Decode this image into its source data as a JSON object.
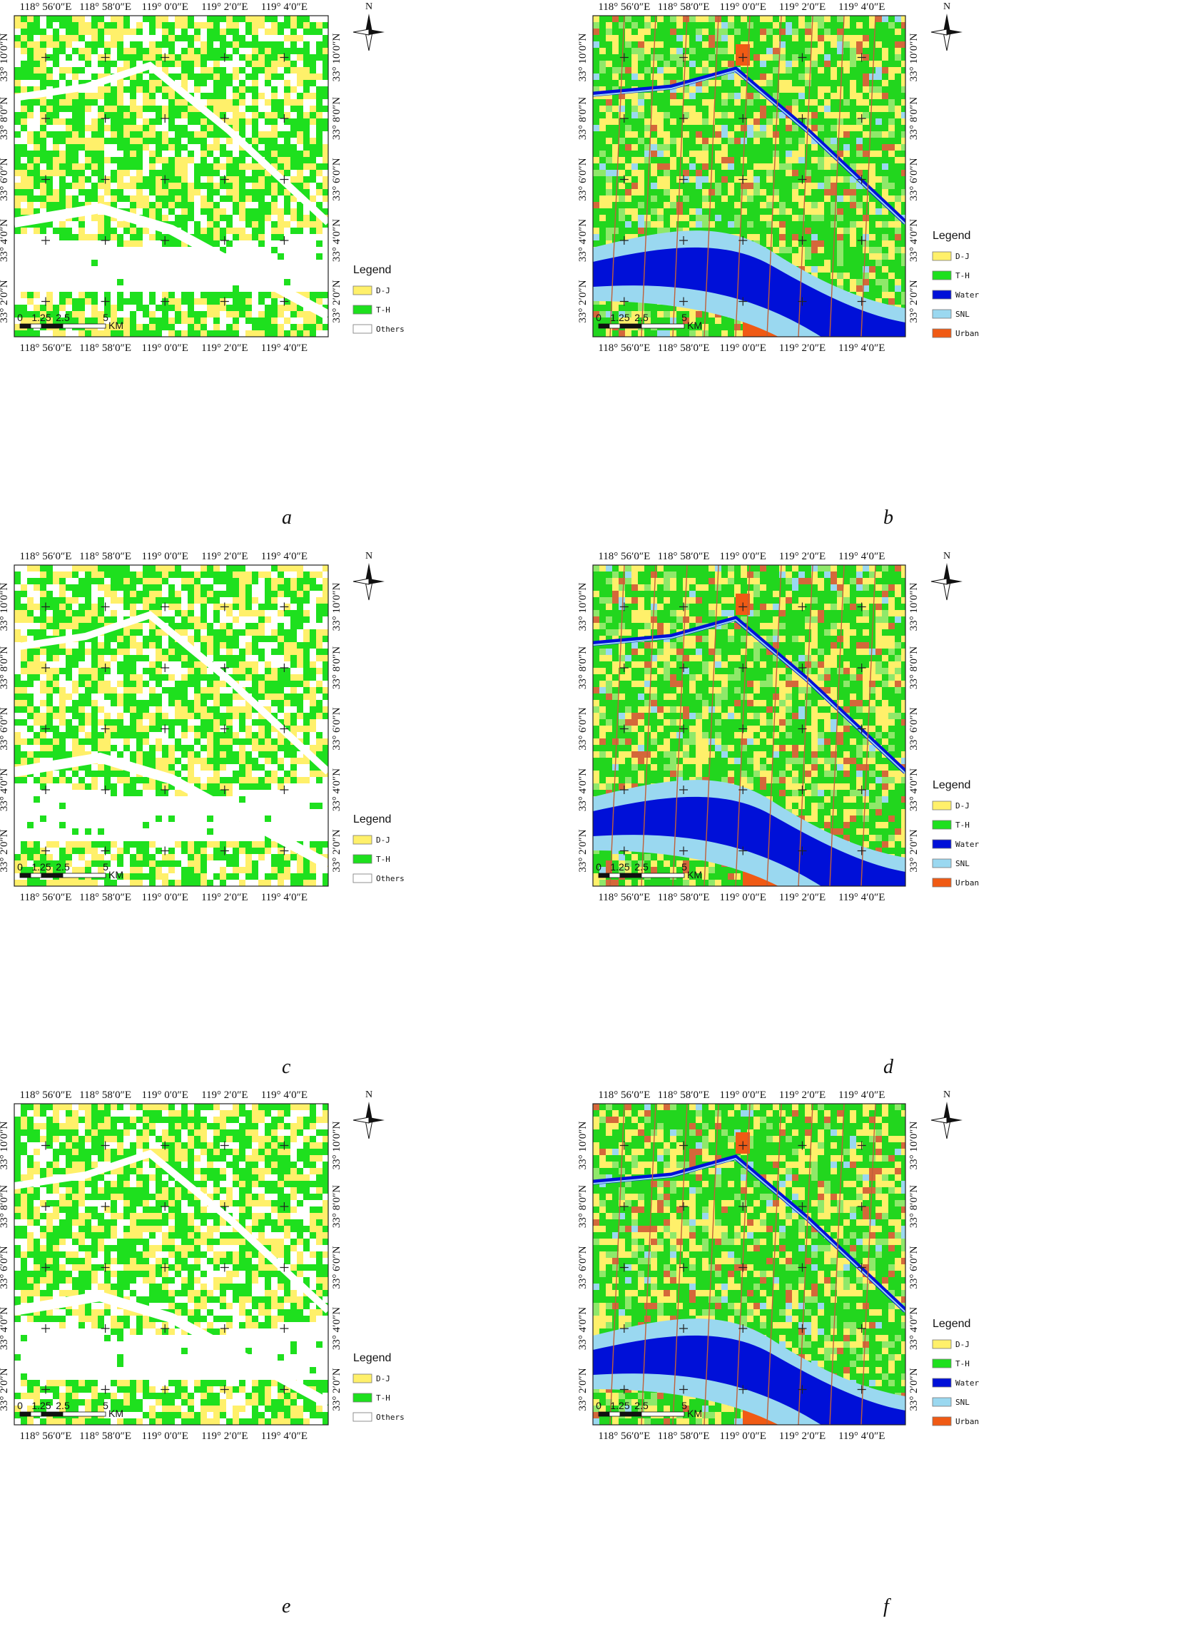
{
  "figure": {
    "panels": [
      {
        "id": "a",
        "caption": "a",
        "classes": "crop",
        "lon_labels": [
          "118° 56′0″E",
          "118° 58′0″E",
          "119° 0′0″E",
          "119° 2′0″E",
          "119° 4′0″E"
        ],
        "lat_labels": [
          "33° 10′0″N",
          "33° 8′0″N",
          "33° 6′0″N",
          "33° 4′0″N",
          "33° 2′0″N"
        ],
        "north_label": "N",
        "scale": {
          "ticks": [
            "0",
            "1.25",
            "2.5",
            "5"
          ],
          "unit": "KM"
        },
        "legend": {
          "title": "Legend",
          "items": [
            {
              "label": "D-J",
              "color": "#fff06a"
            },
            {
              "label": "T-H",
              "color": "#1ee01e"
            },
            {
              "label": "Others",
              "color": "#ffffff"
            }
          ]
        }
      },
      {
        "id": "b",
        "caption": "b",
        "classes": "full",
        "lon_labels": [
          "118° 56′0″E",
          "118° 58′0″E",
          "119° 0′0″E",
          "119° 2′0″E",
          "119° 4′0″E"
        ],
        "lat_labels": [
          "33° 10′0″N",
          "33° 8′0″N",
          "33° 6′0″N",
          "33° 4′0″N",
          "33° 2′0″N"
        ],
        "north_label": "N",
        "scale": {
          "ticks": [
            "0",
            "1.25",
            "2.5",
            "5"
          ],
          "unit": "KM"
        },
        "legend": {
          "title": "Legend",
          "items": [
            {
              "label": "D-J",
              "color": "#fff06a"
            },
            {
              "label": "T-H",
              "color": "#1ee01e"
            },
            {
              "label": "Water",
              "color": "#0010d8"
            },
            {
              "label": "SNL",
              "color": "#9ad8f0"
            },
            {
              "label": "Urban",
              "color": "#f05a14"
            }
          ]
        }
      },
      {
        "id": "c",
        "caption": "c",
        "classes": "crop",
        "lon_labels": [
          "118° 56′0″E",
          "118° 58′0″E",
          "119° 0′0″E",
          "119° 2′0″E",
          "119° 4′0″E"
        ],
        "lat_labels": [
          "33° 10′0″N",
          "33° 8′0″N",
          "33° 6′0″N",
          "33° 4′0″N",
          "33° 2′0″N"
        ],
        "north_label": "N",
        "scale": {
          "ticks": [
            "0",
            "1.25",
            "2.5",
            "5"
          ],
          "unit": "KM"
        },
        "legend": {
          "title": "Legend",
          "items": [
            {
              "label": "D-J",
              "color": "#fff06a"
            },
            {
              "label": "T-H",
              "color": "#1ee01e"
            },
            {
              "label": "Others",
              "color": "#ffffff"
            }
          ]
        }
      },
      {
        "id": "d",
        "caption": "d",
        "classes": "full",
        "lon_labels": [
          "118° 56′0″E",
          "118° 58′0″E",
          "119° 0′0″E",
          "119° 2′0″E",
          "119° 4′0″E"
        ],
        "lat_labels": [
          "33° 10′0″N",
          "33° 8′0″N",
          "33° 6′0″N",
          "33° 4′0″N",
          "33° 2′0″N"
        ],
        "north_label": "N",
        "scale": {
          "ticks": [
            "0",
            "1.25",
            "2.5",
            "5"
          ],
          "unit": "KM"
        },
        "legend": {
          "title": "Legend",
          "items": [
            {
              "label": "D-J",
              "color": "#fff06a"
            },
            {
              "label": "T-H",
              "color": "#1ee01e"
            },
            {
              "label": "Water",
              "color": "#0010d8"
            },
            {
              "label": "SNL",
              "color": "#9ad8f0"
            },
            {
              "label": "Urban",
              "color": "#f05a14"
            }
          ]
        }
      },
      {
        "id": "e",
        "caption": "e",
        "classes": "crop",
        "lon_labels": [
          "118° 56′0″E",
          "118° 58′0″E",
          "119° 0′0″E",
          "119° 2′0″E",
          "119° 4′0″E"
        ],
        "lat_labels": [
          "33° 10′0″N",
          "33° 8′0″N",
          "33° 6′0″N",
          "33° 4′0″N",
          "33° 2′0″N"
        ],
        "north_label": "N",
        "scale": {
          "ticks": [
            "0",
            "1.25",
            "2.5",
            "5"
          ],
          "unit": "KM"
        },
        "legend": {
          "title": "Legend",
          "items": [
            {
              "label": "D-J",
              "color": "#fff06a"
            },
            {
              "label": "T-H",
              "color": "#1ee01e"
            },
            {
              "label": "Others",
              "color": "#ffffff"
            }
          ]
        }
      },
      {
        "id": "f",
        "caption": "f",
        "classes": "full",
        "lon_labels": [
          "118° 56′0″E",
          "118° 58′0″E",
          "119° 0′0″E",
          "119° 2′0″E",
          "119° 4′0″E"
        ],
        "lat_labels": [
          "33° 10′0″N",
          "33° 8′0″N",
          "33° 6′0″N",
          "33° 4′0″N",
          "33° 2′0″N"
        ],
        "north_label": "N",
        "scale": {
          "ticks": [
            "0",
            "1.25",
            "2.5",
            "5"
          ],
          "unit": "KM"
        },
        "legend": {
          "title": "Legend",
          "items": [
            {
              "label": "D-J",
              "color": "#fff06a"
            },
            {
              "label": "T-H",
              "color": "#1ee01e"
            },
            {
              "label": "Water",
              "color": "#0010d8"
            },
            {
              "label": "SNL",
              "color": "#9ad8f0"
            },
            {
              "label": "Urban",
              "color": "#f05a14"
            }
          ]
        }
      }
    ]
  }
}
